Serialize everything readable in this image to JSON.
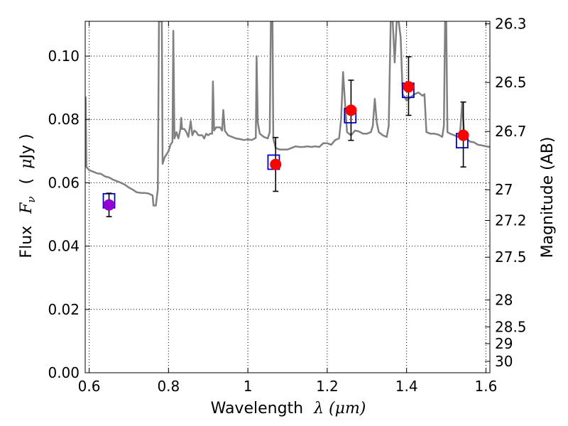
{
  "chart_data": {
    "type": "line",
    "xlabel": "Wavelength",
    "xlabel_math": "λ (μm)",
    "ylabel": "Flux",
    "ylabel_math": "F",
    "ylabel_sub": "ν",
    "ylabel_unit_paren_open": "(",
    "ylabel_unit_mu": "μ",
    "ylabel_unit_rest": "Jy )",
    "y2label": "Magnitude (AB)",
    "xlim": [
      0.59,
      1.61
    ],
    "ylim": [
      0.0,
      0.111
    ],
    "grid": true,
    "xticks": [
      {
        "value": 0.6,
        "label": "0.6"
      },
      {
        "value": 0.8,
        "label": "0.8"
      },
      {
        "value": 1.0,
        "label": "1"
      },
      {
        "value": 1.2,
        "label": "1.2"
      },
      {
        "value": 1.4,
        "label": "1.4"
      },
      {
        "value": 1.6,
        "label": "1.6"
      }
    ],
    "yticks": [
      {
        "value": 0.0,
        "label": "0.00"
      },
      {
        "value": 0.02,
        "label": "0.02"
      },
      {
        "value": 0.04,
        "label": "0.04"
      },
      {
        "value": 0.06,
        "label": "0.06"
      },
      {
        "value": 0.08,
        "label": "0.08"
      },
      {
        "value": 0.1,
        "label": "0.10"
      }
    ],
    "y2ticks": [
      {
        "label": "26.3",
        "flux": 0.1102
      },
      {
        "label": "26.5",
        "flux": 0.0917
      },
      {
        "label": "26.7",
        "flux": 0.0762
      },
      {
        "label": "27",
        "flux": 0.0578
      },
      {
        "label": "27.2",
        "flux": 0.0481
      },
      {
        "label": "27.5",
        "flux": 0.0365
      },
      {
        "label": "28",
        "flux": 0.023
      },
      {
        "label": "28.5",
        "flux": 0.0145
      },
      {
        "label": "29",
        "flux": 0.0092
      },
      {
        "label": "30",
        "flux": 0.0036
      }
    ],
    "spectrum": {
      "color": "#808080",
      "points": [
        [
          0.59,
          0.066
        ],
        [
          0.591,
          0.087
        ],
        [
          0.593,
          0.065
        ],
        [
          0.6,
          0.064
        ],
        [
          0.61,
          0.0635
        ],
        [
          0.62,
          0.063
        ],
        [
          0.63,
          0.0628
        ],
        [
          0.64,
          0.062
        ],
        [
          0.65,
          0.0617
        ],
        [
          0.66,
          0.061
        ],
        [
          0.67,
          0.0605
        ],
        [
          0.68,
          0.06
        ],
        [
          0.69,
          0.0594
        ],
        [
          0.7,
          0.0585
        ],
        [
          0.71,
          0.0578
        ],
        [
          0.72,
          0.057
        ],
        [
          0.73,
          0.0568
        ],
        [
          0.74,
          0.0568
        ],
        [
          0.75,
          0.0566
        ],
        [
          0.76,
          0.056
        ],
        [
          0.762,
          0.0528
        ],
        [
          0.768,
          0.0528
        ],
        [
          0.773,
          0.058
        ],
        [
          0.776,
          0.111
        ],
        [
          0.783,
          0.111
        ],
        [
          0.785,
          0.066
        ],
        [
          0.79,
          0.068
        ],
        [
          0.8,
          0.07
        ],
        [
          0.805,
          0.072
        ],
        [
          0.81,
          0.073
        ],
        [
          0.812,
          0.108
        ],
        [
          0.815,
          0.074
        ],
        [
          0.82,
          0.076
        ],
        [
          0.825,
          0.074
        ],
        [
          0.83,
          0.077
        ],
        [
          0.832,
          0.0805
        ],
        [
          0.834,
          0.077
        ],
        [
          0.84,
          0.077
        ],
        [
          0.845,
          0.076
        ],
        [
          0.85,
          0.0745
        ],
        [
          0.856,
          0.0795
        ],
        [
          0.86,
          0.075
        ],
        [
          0.865,
          0.0765
        ],
        [
          0.87,
          0.076
        ],
        [
          0.875,
          0.075
        ],
        [
          0.885,
          0.075
        ],
        [
          0.89,
          0.074
        ],
        [
          0.895,
          0.0755
        ],
        [
          0.9,
          0.075
        ],
        [
          0.905,
          0.0755
        ],
        [
          0.91,
          0.0755
        ],
        [
          0.912,
          0.092
        ],
        [
          0.915,
          0.0765
        ],
        [
          0.92,
          0.0775
        ],
        [
          0.93,
          0.0775
        ],
        [
          0.935,
          0.0765
        ],
        [
          0.938,
          0.083
        ],
        [
          0.942,
          0.0765
        ],
        [
          0.95,
          0.075
        ],
        [
          0.96,
          0.0745
        ],
        [
          0.97,
          0.074
        ],
        [
          0.98,
          0.0738
        ],
        [
          0.99,
          0.0735
        ],
        [
          1.0,
          0.0737
        ],
        [
          1.01,
          0.0735
        ],
        [
          1.02,
          0.0742
        ],
        [
          1.022,
          0.1
        ],
        [
          1.025,
          0.079
        ],
        [
          1.03,
          0.0755
        ],
        [
          1.04,
          0.0745
        ],
        [
          1.05,
          0.074
        ],
        [
          1.055,
          0.076
        ],
        [
          1.058,
          0.111
        ],
        [
          1.062,
          0.111
        ],
        [
          1.064,
          0.074
        ],
        [
          1.07,
          0.071
        ],
        [
          1.08,
          0.0705
        ],
        [
          1.09,
          0.0705
        ],
        [
          1.1,
          0.0705
        ],
        [
          1.11,
          0.071
        ],
        [
          1.12,
          0.0715
        ],
        [
          1.13,
          0.0713
        ],
        [
          1.14,
          0.0713
        ],
        [
          1.15,
          0.0715
        ],
        [
          1.16,
          0.0713
        ],
        [
          1.17,
          0.0715
        ],
        [
          1.18,
          0.0713
        ],
        [
          1.19,
          0.0725
        ],
        [
          1.2,
          0.0725
        ],
        [
          1.21,
          0.072
        ],
        [
          1.22,
          0.0735
        ],
        [
          1.23,
          0.074
        ],
        [
          1.235,
          0.08
        ],
        [
          1.24,
          0.095
        ],
        [
          1.245,
          0.085
        ],
        [
          1.25,
          0.076
        ],
        [
          1.26,
          0.075
        ],
        [
          1.27,
          0.0765
        ],
        [
          1.28,
          0.0762
        ],
        [
          1.29,
          0.0755
        ],
        [
          1.3,
          0.0755
        ],
        [
          1.31,
          0.076
        ],
        [
          1.315,
          0.078
        ],
        [
          1.32,
          0.0865
        ],
        [
          1.325,
          0.079
        ],
        [
          1.33,
          0.076
        ],
        [
          1.34,
          0.075
        ],
        [
          1.35,
          0.0745
        ],
        [
          1.355,
          0.078
        ],
        [
          1.36,
          0.111
        ],
        [
          1.365,
          0.111
        ],
        [
          1.37,
          0.098
        ],
        [
          1.375,
          0.111
        ],
        [
          1.38,
          0.111
        ],
        [
          1.385,
          0.106
        ],
        [
          1.39,
          0.088
        ],
        [
          1.4,
          0.086
        ],
        [
          1.41,
          0.087
        ],
        [
          1.42,
          0.088
        ],
        [
          1.43,
          0.0885
        ],
        [
          1.44,
          0.0875
        ],
        [
          1.445,
          0.088
        ],
        [
          1.45,
          0.076
        ],
        [
          1.46,
          0.0755
        ],
        [
          1.47,
          0.0755
        ],
        [
          1.48,
          0.0752
        ],
        [
          1.49,
          0.0745
        ],
        [
          1.494,
          0.078
        ],
        [
          1.497,
          0.111
        ],
        [
          1.5,
          0.111
        ],
        [
          1.503,
          0.076
        ],
        [
          1.51,
          0.0755
        ],
        [
          1.52,
          0.075
        ],
        [
          1.53,
          0.0745
        ],
        [
          1.535,
          0.076
        ],
        [
          1.54,
          0.085
        ],
        [
          1.545,
          0.076
        ],
        [
          1.55,
          0.074
        ],
        [
          1.56,
          0.073
        ],
        [
          1.57,
          0.0728
        ],
        [
          1.58,
          0.072
        ],
        [
          1.59,
          0.0718
        ],
        [
          1.6,
          0.0715
        ],
        [
          1.61,
          0.0713
        ]
      ]
    },
    "model_points": {
      "color": "#0000cc",
      "points": [
        {
          "x": 0.65,
          "y": 0.0543
        },
        {
          "x": 1.065,
          "y": 0.0665
        },
        {
          "x": 1.258,
          "y": 0.0812
        },
        {
          "x": 1.404,
          "y": 0.0892
        },
        {
          "x": 1.54,
          "y": 0.0733
        }
      ]
    },
    "observed_points": {
      "color": "#ff0000",
      "first_color": "#9400d3",
      "errorbar_color": "#000000",
      "points": [
        {
          "x": 0.65,
          "y": 0.053,
          "err_low": 0.0037,
          "err_high": 0.0037
        },
        {
          "x": 1.07,
          "y": 0.0658,
          "err_low": 0.0085,
          "err_high": 0.0085
        },
        {
          "x": 1.26,
          "y": 0.0829,
          "err_low": 0.0095,
          "err_high": 0.0095
        },
        {
          "x": 1.405,
          "y": 0.0903,
          "err_low": 0.009,
          "err_high": 0.0095
        },
        {
          "x": 1.543,
          "y": 0.075,
          "err_low": 0.01,
          "err_high": 0.0105
        }
      ]
    }
  }
}
